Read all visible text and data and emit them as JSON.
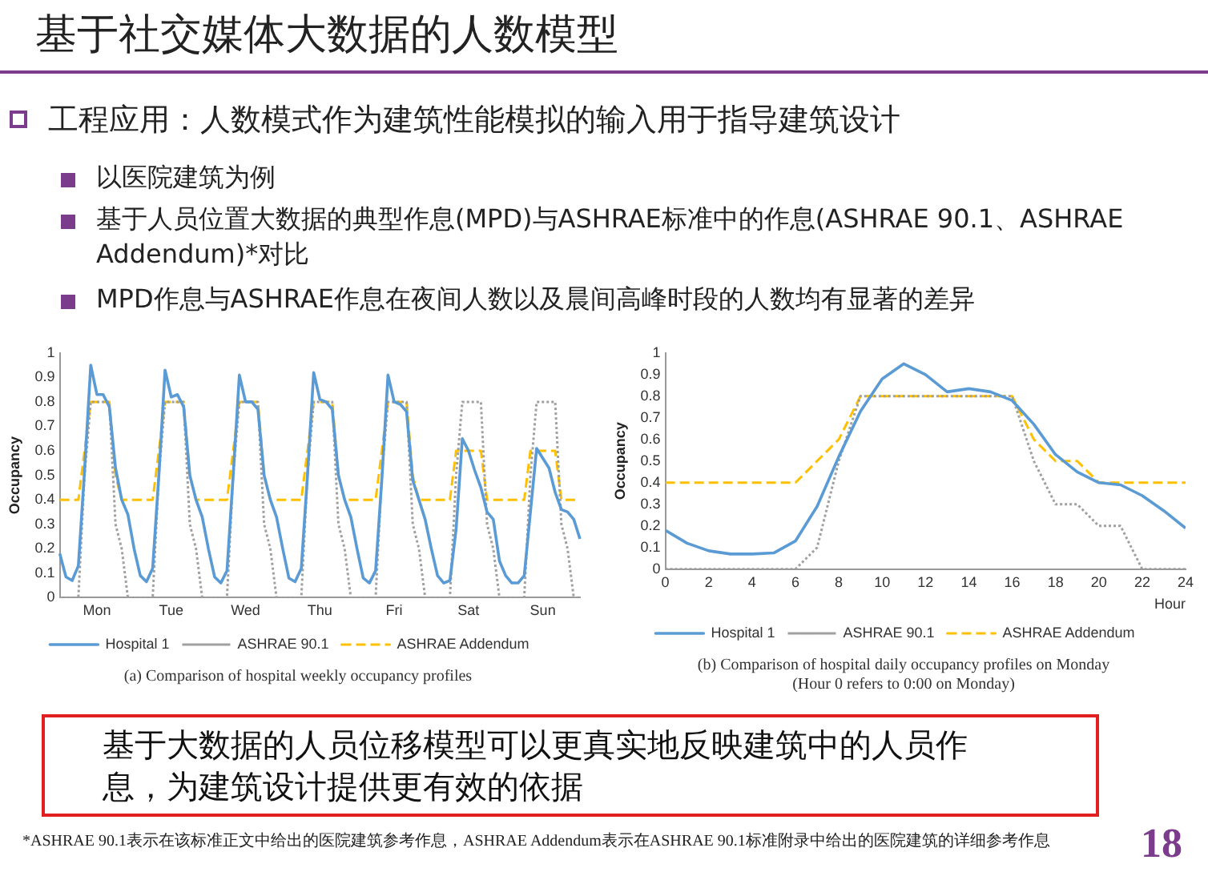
{
  "chart_data": [
    {
      "type": "other",
      "title": "基于社交媒体大数据的人数模型",
      "annotations": [
        "工程应用：人数模式作为建筑性能模拟的输入用于指导建筑设计",
        "以医院建筑为例",
        "基于人员位置大数据的典型作息(MPD)与ASHRAE标准中的作息(ASHRAE 90.1、ASHRAE Addendum)*对比",
        "MPD作息与ASHRAE作息在夜间人数以及晨间高峰时段的人数均有显著的差异"
      ]
    },
    {
      "type": "line",
      "ylabel": "Occupancy",
      "annotations": [
        "(a) Comparison of hospital weekly occupancy profiles"
      ],
      "categories": [
        null,
        null,
        null,
        null,
        null,
        null,
        "Mon",
        null,
        null,
        null,
        null,
        null,
        null,
        null,
        null,
        null,
        null,
        null,
        "Tue",
        null,
        null,
        null,
        null,
        null,
        null,
        null,
        null,
        null,
        null,
        null,
        "Wed",
        null,
        null,
        null,
        null,
        null,
        null,
        null,
        null,
        null,
        null,
        null,
        "Thu",
        null,
        null,
        null,
        null,
        null,
        null,
        null,
        null,
        null,
        null,
        null,
        "Fri",
        null,
        null,
        null,
        null,
        null,
        null,
        null,
        null,
        null,
        null,
        null,
        "Sat",
        null,
        null,
        null,
        null,
        null,
        null,
        null,
        null,
        null,
        null,
        null,
        "Sun",
        null,
        null,
        null,
        null,
        null,
        null
      ],
      "ylim": [
        0,
        1
      ],
      "yticks": [
        0,
        0.1,
        0.2,
        0.3,
        0.4,
        0.5,
        0.6,
        0.7,
        0.8,
        0.9,
        1
      ],
      "grid": false,
      "legend": "bottom",
      "marker": "none",
      "series": [
        {
          "name": "Hospital 1",
          "color": "#5b9bd5",
          "line_style": "solid",
          "values": [
            0.18,
            0.085,
            0.07,
            0.13,
            0.52,
            0.95,
            0.83,
            0.83,
            0.78,
            0.53,
            0.4,
            0.34,
            0.2,
            0.09,
            0.065,
            0.12,
            0.5,
            0.93,
            0.82,
            0.83,
            0.78,
            0.5,
            0.4,
            0.33,
            0.2,
            0.085,
            0.06,
            0.11,
            0.5,
            0.91,
            0.8,
            0.8,
            0.77,
            0.5,
            0.4,
            0.33,
            0.2,
            0.08,
            0.065,
            0.12,
            0.5,
            0.92,
            0.81,
            0.8,
            0.77,
            0.5,
            0.4,
            0.33,
            0.2,
            0.08,
            0.06,
            0.11,
            0.48,
            0.91,
            0.8,
            0.79,
            0.76,
            0.48,
            0.4,
            0.32,
            0.2,
            0.09,
            0.06,
            0.07,
            0.28,
            0.65,
            0.6,
            0.52,
            0.45,
            0.35,
            0.32,
            0.15,
            0.09,
            0.06,
            0.06,
            0.09,
            0.35,
            0.61,
            0.57,
            0.53,
            0.43,
            0.36,
            0.35,
            0.32,
            0.24
          ]
        },
        {
          "name": "ASHRAE 90.1",
          "color": "#a0a0a0",
          "line_style": "dotted",
          "values": [
            0,
            0,
            0,
            0,
            0.5,
            0.8,
            0.8,
            0.8,
            0.8,
            0.3,
            0.2,
            0,
            0,
            0,
            0,
            0,
            0.5,
            0.8,
            0.8,
            0.8,
            0.8,
            0.3,
            0.2,
            0,
            0,
            0,
            0,
            0,
            0.5,
            0.8,
            0.8,
            0.8,
            0.8,
            0.3,
            0.2,
            0,
            0,
            0,
            0,
            0,
            0.5,
            0.8,
            0.8,
            0.8,
            0.8,
            0.3,
            0.2,
            0,
            0,
            0,
            0,
            0,
            0.5,
            0.8,
            0.8,
            0.8,
            0.8,
            0.3,
            0.2,
            0,
            0,
            0,
            0,
            0,
            0.5,
            0.8,
            0.8,
            0.8,
            0.8,
            0.3,
            0.2,
            0,
            0,
            0,
            0,
            0,
            0.5,
            0.8,
            0.8,
            0.8,
            0.8,
            0.3,
            0.2,
            0,
            0
          ]
        },
        {
          "name": "ASHRAE Addendum",
          "color": "#ffc000",
          "line_style": "dashed",
          "values": [
            0.4,
            0.4,
            0.4,
            0.4,
            0.6,
            0.8,
            0.8,
            0.8,
            0.8,
            0.5,
            0.4,
            0.4,
            0.4,
            0.4,
            0.4,
            0.4,
            0.6,
            0.8,
            0.8,
            0.8,
            0.8,
            0.5,
            0.4,
            0.4,
            0.4,
            0.4,
            0.4,
            0.4,
            0.6,
            0.8,
            0.8,
            0.8,
            0.8,
            0.5,
            0.4,
            0.4,
            0.4,
            0.4,
            0.4,
            0.4,
            0.6,
            0.8,
            0.8,
            0.8,
            0.8,
            0.5,
            0.4,
            0.4,
            0.4,
            0.4,
            0.4,
            0.4,
            0.6,
            0.8,
            0.8,
            0.8,
            0.8,
            0.5,
            0.4,
            0.4,
            0.4,
            0.4,
            0.4,
            0.4,
            0.6,
            0.6,
            0.6,
            0.6,
            0.6,
            0.4,
            0.4,
            0.4,
            0.4,
            0.4,
            0.4,
            0.4,
            0.6,
            0.6,
            0.6,
            0.6,
            0.6,
            0.4,
            0.4,
            0.4,
            0.4
          ]
        }
      ]
    },
    {
      "type": "line",
      "ylabel": "Occupancy",
      "xlabel": "Hour",
      "annotations": [
        "(b) Comparison of hospital daily occupancy profiles on Monday",
        "(Hour 0 refers to 0:00 on Monday)"
      ],
      "x": [
        0,
        1,
        2,
        3,
        4,
        5,
        6,
        7,
        8,
        9,
        10,
        11,
        12,
        13,
        14,
        15,
        16,
        17,
        18,
        19,
        20,
        21,
        22,
        23,
        24
      ],
      "xlim": [
        0,
        24
      ],
      "xticks": [
        0,
        2,
        4,
        6,
        8,
        10,
        12,
        14,
        16,
        18,
        20,
        22,
        24
      ],
      "ylim": [
        0,
        1
      ],
      "yticks": [
        0,
        0.1,
        0.2,
        0.3,
        0.4,
        0.5,
        0.6,
        0.7,
        0.8,
        0.9,
        1
      ],
      "grid": false,
      "legend": "bottom",
      "marker": "none",
      "series": [
        {
          "name": "Hospital 1",
          "color": "#5b9bd5",
          "line_style": "solid",
          "values": [
            0.18,
            0.12,
            0.085,
            0.07,
            0.07,
            0.075,
            0.13,
            0.29,
            0.52,
            0.73,
            0.88,
            0.95,
            0.9,
            0.82,
            0.835,
            0.82,
            0.78,
            0.67,
            0.53,
            0.45,
            0.4,
            0.39,
            0.34,
            0.27,
            0.19
          ]
        },
        {
          "name": "ASHRAE 90.1",
          "color": "#a0a0a0",
          "line_style": "dotted",
          "values": [
            0,
            0,
            0,
            0,
            0,
            0,
            0,
            0.1,
            0.5,
            0.8,
            0.8,
            0.8,
            0.8,
            0.8,
            0.8,
            0.8,
            0.8,
            0.5,
            0.3,
            0.3,
            0.2,
            0.2,
            0,
            0,
            0
          ]
        },
        {
          "name": "ASHRAE Addendum",
          "color": "#ffc000",
          "line_style": "dashed",
          "values": [
            0.4,
            0.4,
            0.4,
            0.4,
            0.4,
            0.4,
            0.4,
            0.5,
            0.6,
            0.8,
            0.8,
            0.8,
            0.8,
            0.8,
            0.8,
            0.8,
            0.8,
            0.6,
            0.5,
            0.5,
            0.4,
            0.4,
            0.4,
            0.4,
            0.4
          ]
        }
      ]
    },
    {
      "type": "other",
      "annotations": [
        "基于大数据的人员位移模型可以更真实地反映建筑中的人员作息，为建筑设计提供更有效的依据",
        "*ASHRAE 90.1表示在该标准正文中给出的医院建筑参考作息，ASHRAE Addendum表示在ASHRAE 90.1标准附录中给出的医院建筑的详细参考作息",
        "18"
      ]
    }
  ]
}
